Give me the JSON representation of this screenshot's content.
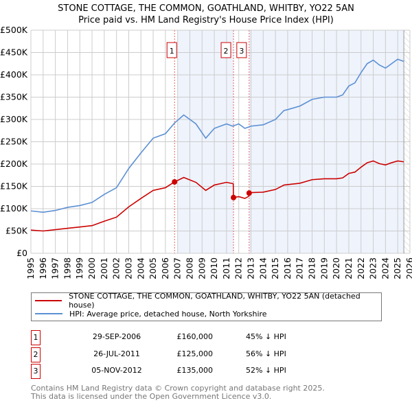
{
  "chart_data": {
    "type": "line",
    "title": "STONE COTTAGE, THE COMMON, GOATHLAND, WHITBY, YO22 5AN",
    "subtitle": "Price paid vs. HM Land Registry's House Price Index (HPI)",
    "xlim": [
      1995,
      2026
    ],
    "ylim": [
      0,
      500000
    ],
    "x_ticks": [
      "1995",
      "1996",
      "1997",
      "1998",
      "1999",
      "2000",
      "2001",
      "2002",
      "2003",
      "2004",
      "2005",
      "2006",
      "2007",
      "2008",
      "2009",
      "2010",
      "2011",
      "2012",
      "2013",
      "2014",
      "2015",
      "2016",
      "2017",
      "2018",
      "2019",
      "2020",
      "2021",
      "2022",
      "2023",
      "2024",
      "2025",
      "2026"
    ],
    "y_ticks": [
      {
        "v": 0,
        "label": "£0"
      },
      {
        "v": 50000,
        "label": "£50K"
      },
      {
        "v": 100000,
        "label": "£100K"
      },
      {
        "v": 150000,
        "label": "£150K"
      },
      {
        "v": 200000,
        "label": "£200K"
      },
      {
        "v": 250000,
        "label": "£250K"
      },
      {
        "v": 300000,
        "label": "£300K"
      },
      {
        "v": 350000,
        "label": "£350K"
      },
      {
        "v": 400000,
        "label": "£400K"
      },
      {
        "v": 450000,
        "label": "£450K"
      },
      {
        "v": 500000,
        "label": "£500K"
      }
    ],
    "grid": true,
    "series": [
      {
        "name": "STONE COTTAGE, THE COMMON, GOATHLAND, WHITBY, YO22 5AN (detached house)",
        "color": "#cc0000",
        "x": [
          1995,
          1996,
          1997,
          1998,
          1999,
          2000,
          2001,
          2002,
          2003,
          2004,
          2005,
          2006,
          2006.75,
          2007.5,
          2008.5,
          2009.3,
          2010,
          2011,
          2011.55,
          2011.57,
          2012,
          2012.5,
          2012.84,
          2012.85,
          2013,
          2014,
          2015,
          2015.7,
          2016,
          2017,
          2018,
          2019,
          2020,
          2020.5,
          2021,
          2021.5,
          2022,
          2022.5,
          2023,
          2023.5,
          2024,
          2024.5,
          2025,
          2025.5
        ],
        "y": [
          52000,
          50000,
          53000,
          56000,
          59000,
          62000,
          72000,
          81000,
          104000,
          123000,
          141000,
          147000,
          160000,
          170000,
          159000,
          141000,
          153000,
          159000,
          156000,
          125000,
          127000,
          123000,
          128000,
          135000,
          136000,
          137000,
          143000,
          153000,
          154000,
          157000,
          165000,
          167000,
          167000,
          169000,
          179000,
          182000,
          193000,
          203000,
          207000,
          201000,
          198000,
          203000,
          207000,
          205000
        ]
      },
      {
        "name": "HPI: Average price, detached house, North Yorkshire",
        "color": "#5b8fd4",
        "x": [
          1995,
          1996,
          1997,
          1998,
          1999,
          2000,
          2001,
          2002,
          2003,
          2004,
          2005,
          2006,
          2006.75,
          2007.5,
          2008.5,
          2009.3,
          2010,
          2011,
          2011.5,
          2012,
          2012.5,
          2013,
          2014,
          2015,
          2015.7,
          2016,
          2017,
          2018,
          2019,
          2020,
          2020.5,
          2021,
          2021.5,
          2022,
          2022.5,
          2023,
          2023.5,
          2024,
          2024.5,
          2025,
          2025.5
        ],
        "y": [
          95000,
          92000,
          96000,
          103000,
          107000,
          114000,
          132000,
          147000,
          190000,
          225000,
          258000,
          268000,
          292000,
          310000,
          290000,
          258000,
          280000,
          290000,
          285000,
          290000,
          280000,
          285000,
          288000,
          300000,
          320000,
          322000,
          330000,
          345000,
          350000,
          350000,
          355000,
          375000,
          382000,
          405000,
          425000,
          433000,
          422000,
          415000,
          425000,
          435000,
          430000
        ]
      }
    ],
    "sales": [
      {
        "label": "1",
        "x": 2006.75,
        "y": 160000,
        "date": "29-SEP-2006",
        "price": "£160,000",
        "pct": "45% ↓ HPI"
      },
      {
        "label": "2",
        "x": 2011.57,
        "y": 125000,
        "date": "26-JUL-2011",
        "price": "£125,000",
        "pct": "56% ↓ HPI"
      },
      {
        "label": "3",
        "x": 2012.85,
        "y": 135000,
        "date": "05-NOV-2012",
        "price": "£135,000",
        "pct": "52% ↓ HPI"
      }
    ],
    "shaded_ranges": [
      [
        2007.0,
        2011.57
      ],
      [
        2012.85,
        2025.5
      ]
    ],
    "forecast_from": 2025.5,
    "legend_position": "below"
  },
  "footer": {
    "line1": "Contains HM Land Registry data © Crown copyright and database right 2025.",
    "line2": "This data is licensed under the Open Government Licence v3.0."
  }
}
